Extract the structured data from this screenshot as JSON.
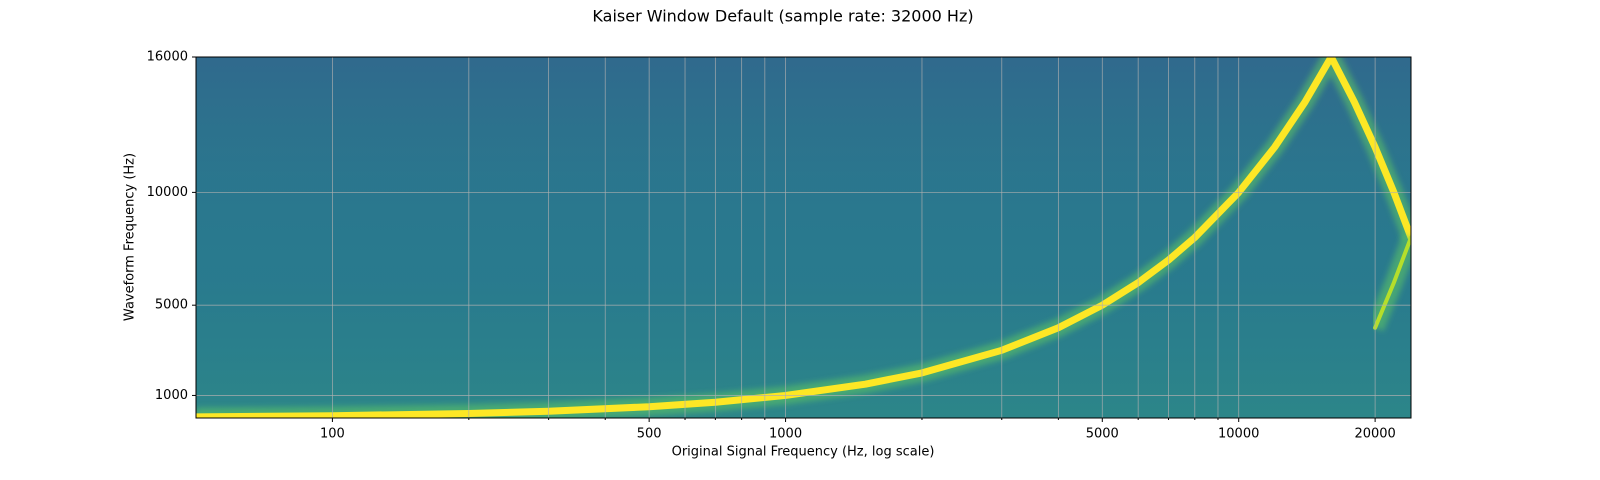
{
  "chart_data": {
    "type": "line",
    "title": "Kaiser Window Default (sample rate: 32000 Hz)",
    "x_label": "Original Signal Frequency (Hz, log scale)",
    "y_label": "Waveform Frequency (Hz)",
    "xscale": "log",
    "xlim": [
      50,
      24000
    ],
    "ylim": [
      0,
      16000
    ],
    "xticks": [
      100,
      500,
      1000,
      5000,
      10000,
      20000
    ],
    "minor_xticks": [
      200,
      300,
      400,
      600,
      700,
      800,
      900,
      2000,
      3000,
      4000,
      6000,
      7000,
      8000,
      9000
    ],
    "yticks": [
      1000,
      5000,
      10000,
      16000
    ],
    "grid": true,
    "background": "#2a768e",
    "series": [
      {
        "color": "#fde725",
        "x": [
          50,
          100,
          200,
          300,
          500,
          700,
          1000,
          1500,
          2000,
          3000,
          4000,
          5000,
          6000,
          7000,
          8000,
          10000,
          12000,
          14000,
          16000,
          18000,
          20000,
          22000,
          24000
        ],
        "values": [
          50,
          100,
          200,
          300,
          500,
          700,
          1000,
          1500,
          2000,
          3000,
          4000,
          5000,
          6000,
          7000,
          8000,
          10000,
          12000,
          14000,
          16000,
          14000,
          12000,
          10000,
          8000
        ]
      },
      {
        "color": "#b5de2b",
        "x": [
          20000,
          22000,
          24000
        ],
        "values": [
          4000,
          6000,
          8000
        ]
      }
    ]
  }
}
